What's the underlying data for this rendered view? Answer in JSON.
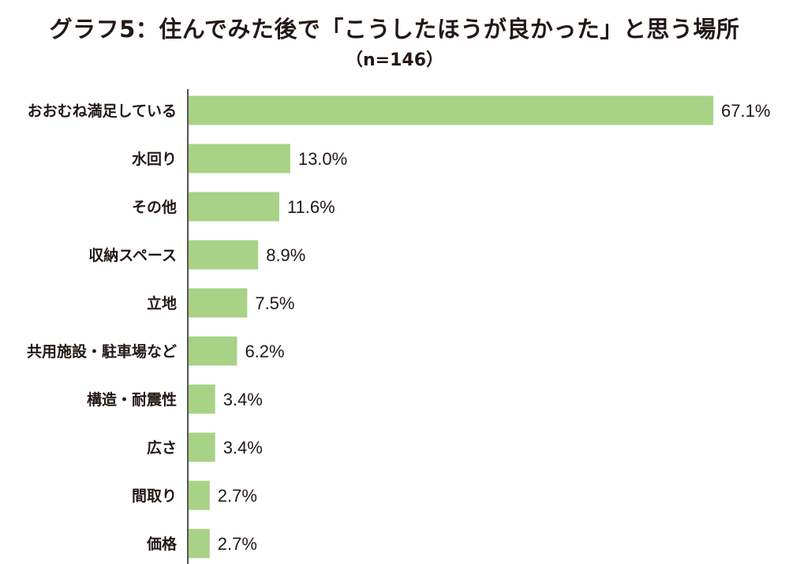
{
  "chart_data": {
    "type": "bar",
    "orientation": "horizontal",
    "title": "グラフ5：住んでみた後で「こうしたほうが良かった」と思う場所",
    "subtitle": "（n=146）",
    "categories": [
      "おおむね満足している",
      "水回り",
      "その他",
      "収納スペース",
      "立地",
      "共用施設・駐車場など",
      "構造・耐震性",
      "広さ",
      "間取り",
      "価格"
    ],
    "values": [
      67.1,
      13.0,
      11.6,
      8.9,
      7.5,
      6.2,
      3.4,
      3.4,
      2.7,
      2.7
    ],
    "value_labels": [
      "67.1%",
      "13.0%",
      "11.6%",
      "8.9%",
      "7.5%",
      "6.2%",
      "3.4%",
      "3.4%",
      "2.7%",
      "2.7%"
    ],
    "xlim": [
      0,
      67.1
    ],
    "grid": false,
    "bar_color": "#a8d286",
    "axis_color": "#231815"
  }
}
